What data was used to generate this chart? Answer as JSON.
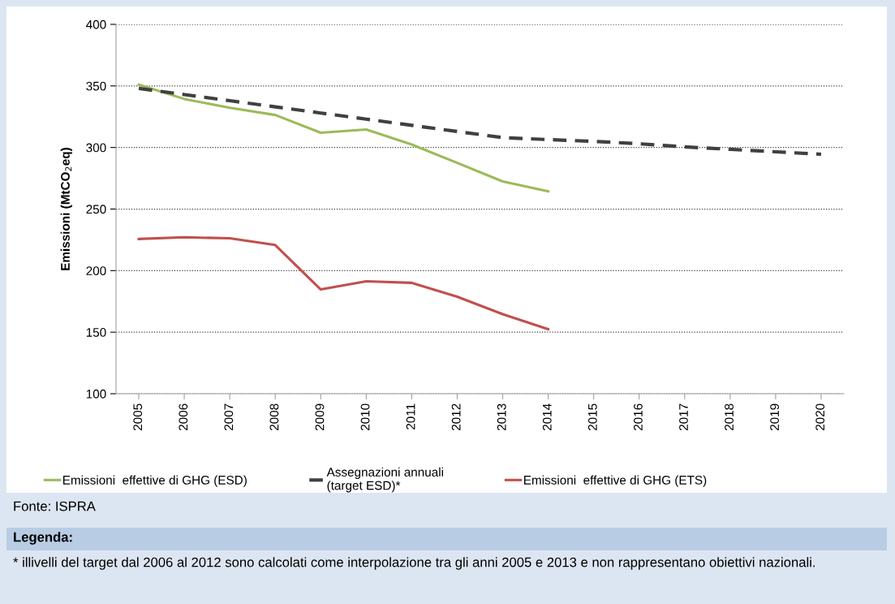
{
  "chart_data": {
    "type": "line",
    "ylabel": "Emissioni (MtCO$_{2}$eq)",
    "categories": [
      "2005",
      "2006",
      "2007",
      "2008",
      "2009",
      "2010",
      "2011",
      "2012",
      "2013",
      "2014",
      "2015",
      "2016",
      "2017",
      "2018",
      "2019",
      "2020"
    ],
    "series": [
      {
        "name": "Emissioni  effettive di GHG (ESD)",
        "color": "#9bbb59",
        "line_style": "solid",
        "values": [
          351,
          339.4,
          332.3,
          326.4,
          312,
          314.6,
          302.4,
          287.5,
          272.4,
          264.4,
          null,
          null,
          null,
          null,
          null,
          null
        ]
      },
      {
        "name": "Assegnazioni annuali\n(target ESD)*",
        "color": "#404040",
        "line_style": "dashed",
        "values": [
          348,
          343,
          338,
          333,
          328,
          323,
          318,
          313,
          308,
          306.4,
          305,
          303,
          300.5,
          298.5,
          296.5,
          294.5
        ]
      },
      {
        "name": "Emissioni  effettive di GHG (ETS)",
        "color": "#c0504d",
        "line_style": "solid",
        "values": [
          225.7,
          227.1,
          226.2,
          220.8,
          184.7,
          191.3,
          190.1,
          178.8,
          164.6,
          152.4,
          null,
          null,
          null,
          null,
          null,
          null
        ]
      }
    ],
    "ylim": [
      100,
      400
    ],
    "yticks": [
      100,
      150,
      200,
      250,
      300,
      350,
      400
    ],
    "grid": "y",
    "legend": "bottom",
    "marker": "none",
    "annotations": [
      "Fonte: ISPRA",
      "Legenda:",
      "* illivelli del target dal 2006 al 2012 sono calcolati come interpolazione tra gli anni 2005 e 2013 e non rappresentano obiettivi nazionali."
    ]
  }
}
